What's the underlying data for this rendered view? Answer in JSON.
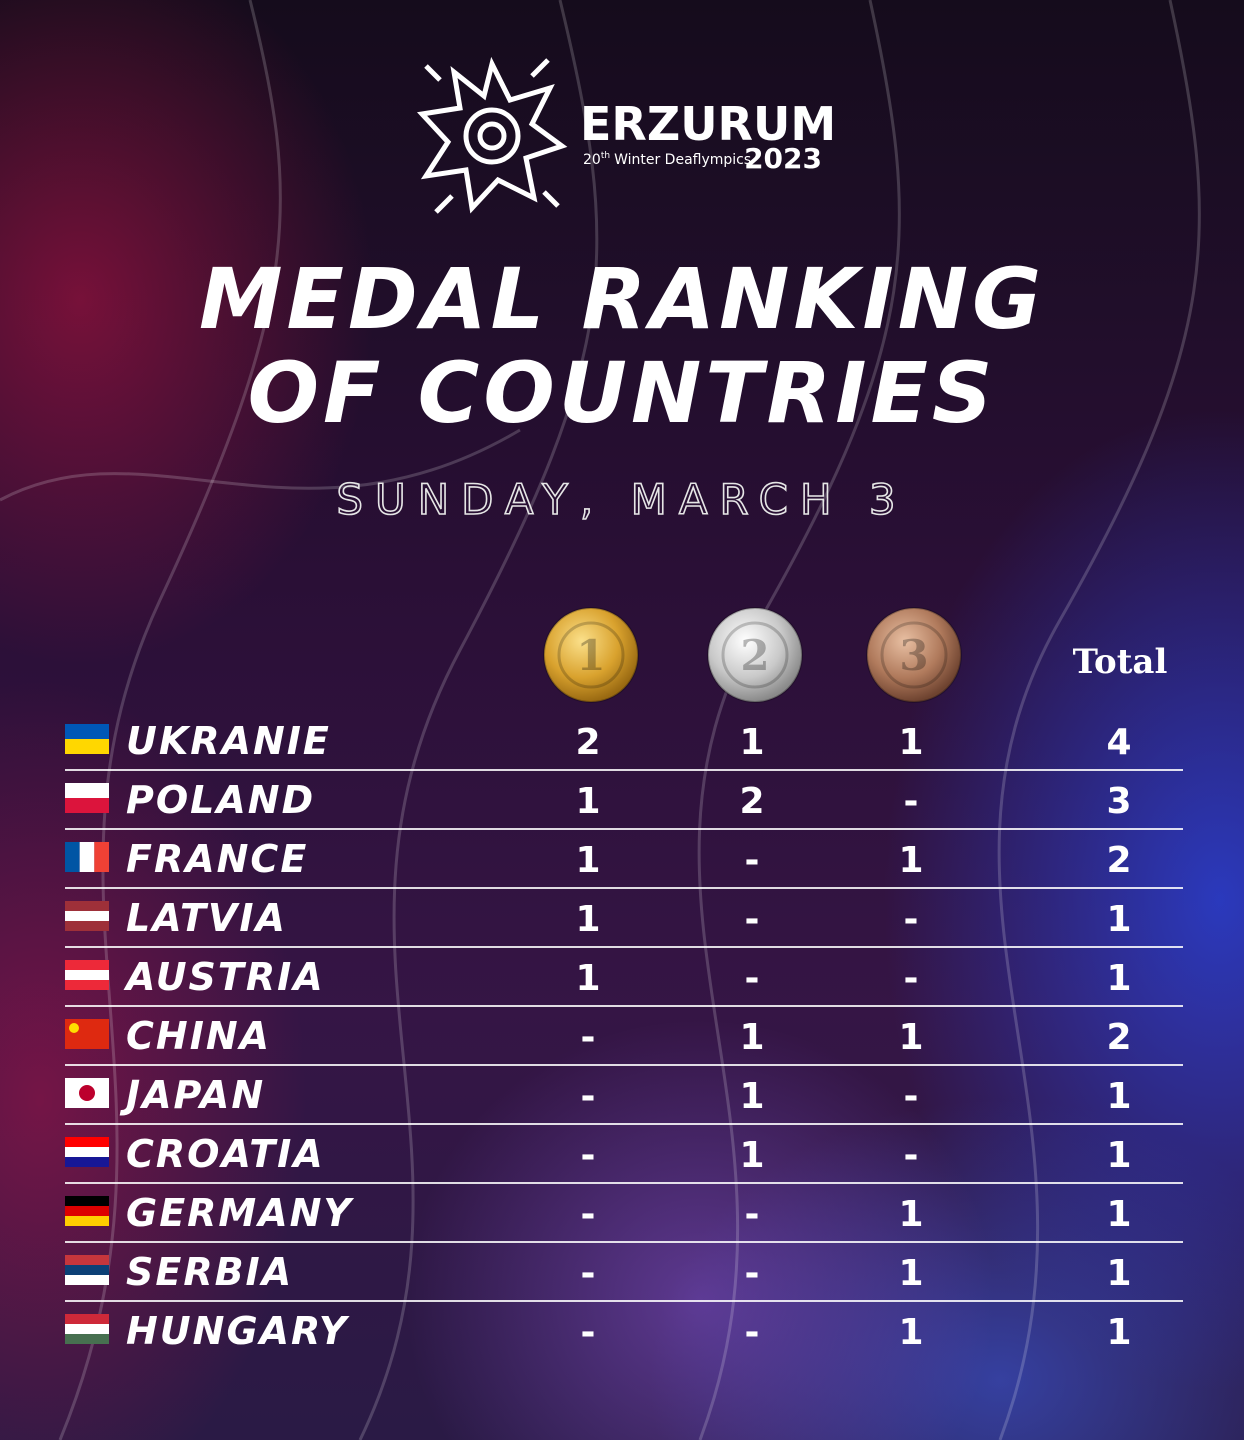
{
  "logo": {
    "name": "ERZURUM",
    "edition_number": "20",
    "edition_suffix": "th",
    "event": "Winter Deaflympics",
    "year": "2023"
  },
  "title_lines": [
    "MEDAL RANKING",
    "OF COUNTRIES"
  ],
  "date": "SUNDAY, MARCH 3",
  "table": {
    "medal_labels": [
      "1",
      "2",
      "3"
    ],
    "total_header": "Total",
    "rows": [
      [
        "UKRANIE",
        2,
        1,
        1,
        4
      ],
      [
        "POLAND",
        1,
        2,
        "-",
        3
      ],
      [
        "FRANCE",
        1,
        "-",
        1,
        2
      ],
      [
        "LATVIA",
        1,
        "-",
        "-",
        1
      ],
      [
        "AUSTRIA",
        1,
        "-",
        "-",
        1
      ],
      [
        "CHINA",
        "-",
        1,
        1,
        2
      ],
      [
        "JAPAN",
        "-",
        1,
        "-",
        1
      ],
      [
        "CROATIA",
        "-",
        1,
        "-",
        1
      ],
      [
        "GERMANY",
        "-",
        "-",
        1,
        1
      ],
      [
        "SERBIA",
        "-",
        "-",
        1,
        1
      ],
      [
        "HUNGARY",
        "-",
        "-",
        1,
        1
      ]
    ]
  }
}
